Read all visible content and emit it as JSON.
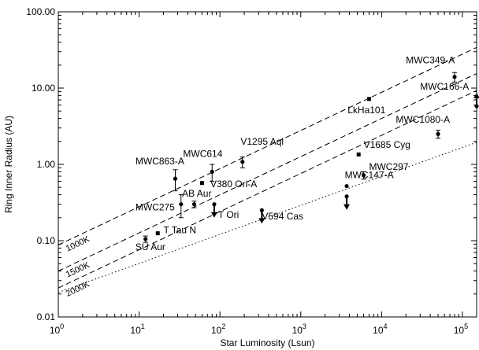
{
  "chart_data": {
    "type": "scatter",
    "xlabel": "Star Luminosity (Lsun)",
    "ylabel": "Ring Inner Radius (AU)",
    "x_scale": "log",
    "y_scale": "log",
    "xlim": [
      1,
      150000
    ],
    "ylim": [
      0.01,
      100
    ],
    "x_ticks": [
      {
        "value": 1,
        "mantissa": "10",
        "exp": "0"
      },
      {
        "value": 10,
        "mantissa": "10",
        "exp": "1"
      },
      {
        "value": 100,
        "mantissa": "10",
        "exp": "2"
      },
      {
        "value": 1000,
        "mantissa": "10",
        "exp": "3"
      },
      {
        "value": 10000,
        "mantissa": "10",
        "exp": "4"
      },
      {
        "value": 100000,
        "mantissa": "10",
        "exp": "5"
      }
    ],
    "y_ticks": [
      {
        "value": 0.01,
        "label": "0.01"
      },
      {
        "value": 0.1,
        "label": "0.10"
      },
      {
        "value": 1,
        "label": "1.00"
      },
      {
        "value": 10,
        "label": "10.00"
      },
      {
        "value": 100,
        "label": "100.00"
      }
    ],
    "points": [
      {
        "name": "SU Aur",
        "x": 12,
        "y": 0.105,
        "yerr": [
          0.095,
          0.115
        ],
        "label_x": 9,
        "label_y": 0.075
      },
      {
        "name": "T Tau N",
        "x": 17,
        "y": 0.125,
        "label_x": 20,
        "label_y": 0.125
      },
      {
        "name": "MWC275",
        "x": 33,
        "y": 0.3,
        "yerr": [
          0.2,
          0.4
        ],
        "label_x": 9,
        "label_y": 0.25
      },
      {
        "name": "MWC863-A",
        "x": 28,
        "y": 0.65,
        "yerr": [
          0.45,
          0.85
        ],
        "label_x": 9,
        "label_y": 1.0
      },
      {
        "name": "AB Aur",
        "x": 48,
        "y": 0.3,
        "yerr": [
          0.27,
          0.33
        ],
        "label_x": 34,
        "label_y": 0.38
      },
      {
        "name": "V380 Ori-A",
        "x": 60,
        "y": 0.57,
        "label_x": 76,
        "label_y": 0.5
      },
      {
        "name": "MWC614",
        "x": 80,
        "y": 0.8,
        "yerr": [
          0.6,
          1.0
        ],
        "label_x": 35,
        "label_y": 1.25
      },
      {
        "name": "T Ori",
        "x": 85,
        "y": 0.3,
        "limit": "upper",
        "label_x": 95,
        "label_y": 0.2
      },
      {
        "name": "V1295 Aql",
        "x": 190,
        "y": 1.08,
        "yerr": [
          0.9,
          1.25
        ],
        "label_x": 180,
        "label_y": 1.8
      },
      {
        "name": "V594 Cas",
        "x": 330,
        "y": 0.25,
        "limit": "upper",
        "label_x": 330,
        "label_y": 0.19
      },
      {
        "name": "MWC147-A",
        "x": 3700,
        "y": 0.52,
        "label_x": 3500,
        "label_y": 0.66
      },
      {
        "name": "MWC147-A (limit)",
        "x": 3700,
        "y": 0.38,
        "limit": "upper"
      },
      {
        "name": "MWC297",
        "x": 6000,
        "y": 0.72,
        "yerr": [
          0.64,
          0.8
        ],
        "label_x": 7000,
        "label_y": 0.85
      },
      {
        "name": "V1685 Cyg",
        "x": 5200,
        "y": 1.35,
        "label_x": 6000,
        "label_y": 1.65
      },
      {
        "name": "LkHa101",
        "x": 7000,
        "y": 7.2,
        "label_x": 3800,
        "label_y": 4.7
      },
      {
        "name": "MWC1080-A",
        "x": 50000,
        "y": 2.5,
        "yerr": [
          2.2,
          2.8
        ],
        "label_x": 15000,
        "label_y": 3.5
      },
      {
        "name": "MWC349-A",
        "x": 80000,
        "y": 14,
        "yerr": [
          12,
          16
        ],
        "label_x": 20000,
        "label_y": 21
      },
      {
        "name": "MWC166-A",
        "x": 150000,
        "y": 5.8,
        "limit": "lower",
        "label_x": 30000,
        "label_y": 9.5
      }
    ],
    "lines": [
      {
        "name": "1000K",
        "style": "dashed",
        "y_at_x1": 0.088,
        "slope": 0.5,
        "label_x": 1.3,
        "label_y": 0.072
      },
      {
        "name": "1500K",
        "style": "dashed",
        "y_at_x1": 0.04,
        "slope": 0.5,
        "label_x": 1.3,
        "label_y": 0.033
      },
      {
        "name": "2000K",
        "style": "dashed",
        "y_at_x1": 0.024,
        "slope": 0.5,
        "label_x": 1.3,
        "label_y": 0.0185
      },
      {
        "name": "",
        "style": "dotted",
        "y_at_x1": 0.021,
        "slope": 0.38
      }
    ]
  }
}
